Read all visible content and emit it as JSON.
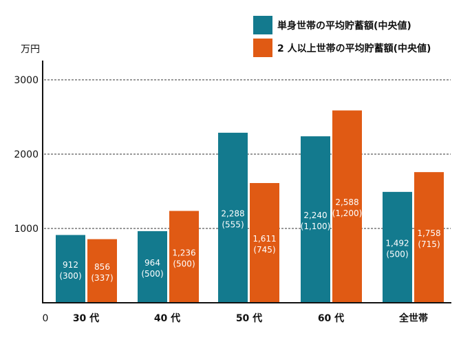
{
  "chart_data": {
    "type": "bar",
    "unit_label": "万円",
    "categories": [
      "30 代",
      "40 代",
      "50 代",
      "60 代",
      "全世帯"
    ],
    "series": [
      {
        "name": "単身世帯の平均貯蓄額(中央値)",
        "color": "#137a8e",
        "values": [
          912,
          964,
          2288,
          2240,
          1492
        ],
        "labels": [
          "912",
          "964",
          "2,288",
          "2,240",
          "1,492"
        ],
        "median_labels": [
          "(300)",
          "(500)",
          "(555)",
          "(1,100)",
          "(500)"
        ],
        "medians": [
          300,
          500,
          555,
          1100,
          500
        ]
      },
      {
        "name": "2 人以上世帯の平均貯蓄額(中央値)",
        "color": "#e05a14",
        "values": [
          856,
          1236,
          1611,
          2588,
          1758
        ],
        "labels": [
          "856",
          "1,236",
          "1,611",
          "2,588",
          "1,758"
        ],
        "median_labels": [
          "(337)",
          "(500)",
          "(745)",
          "(1,200)",
          "(715)"
        ],
        "medians": [
          337,
          500,
          745,
          1200,
          715
        ]
      }
    ],
    "yticks": [
      "0",
      "1000",
      "2000",
      "3000"
    ],
    "ylim": [
      0,
      3200
    ],
    "grid": "dashed horizontal",
    "legend": "top-right"
  }
}
